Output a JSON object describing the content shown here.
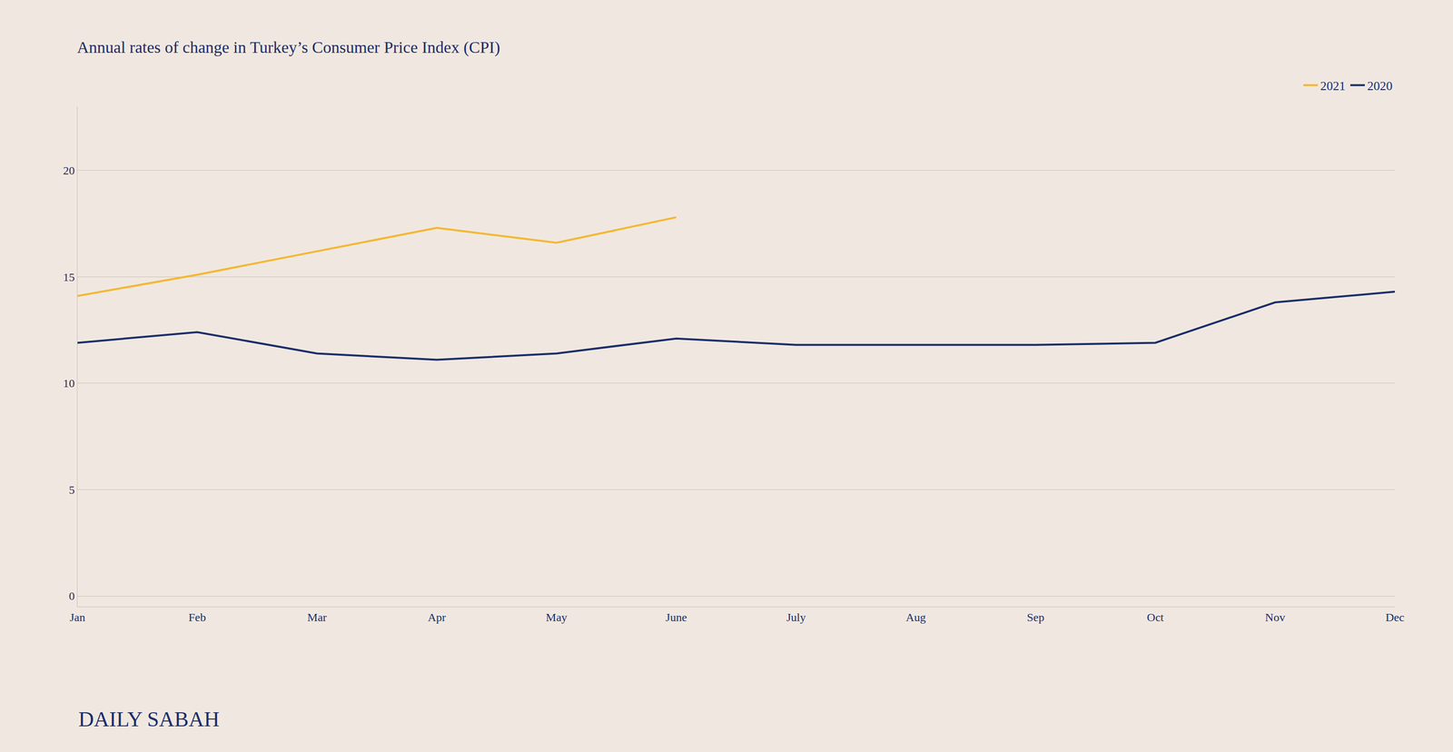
{
  "chart_data": {
    "type": "line",
    "title": "Annual rates of change in Turkey’s Consumer Price Index (CPI)",
    "categories": [
      "Jan",
      "Feb",
      "Mar",
      "Apr",
      "May",
      "June",
      "July",
      "Aug",
      "Sep",
      "Oct",
      "Nov",
      "Dec"
    ],
    "series": [
      {
        "name": "2021",
        "color": "#f5b731",
        "values": [
          14.1,
          15.1,
          16.2,
          17.3,
          16.6,
          17.8,
          null,
          null,
          null,
          null,
          null,
          null
        ]
      },
      {
        "name": "2020",
        "color": "#1b2d6b",
        "values": [
          11.9,
          12.4,
          11.4,
          11.1,
          11.4,
          12.1,
          11.8,
          11.8,
          11.8,
          11.9,
          13.8,
          14.3
        ]
      }
    ],
    "ylim": [
      -0.5,
      23
    ],
    "yticks": [
      0,
      5,
      10,
      15,
      20
    ],
    "grid": true,
    "legend": "upper right",
    "annotations": [
      "DAILY SABAH"
    ]
  }
}
